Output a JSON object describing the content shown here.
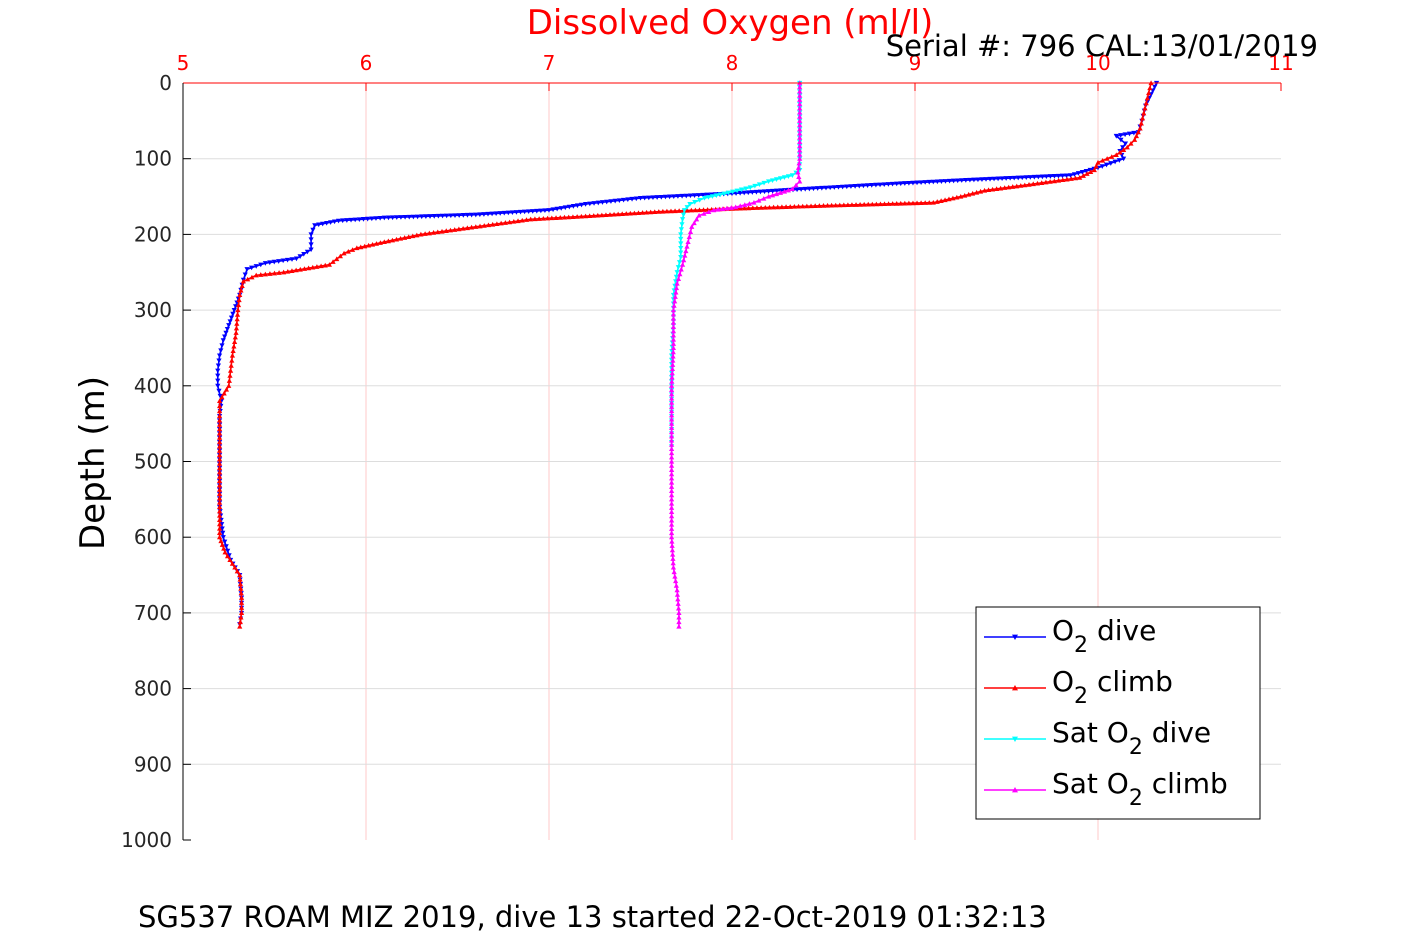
{
  "chart_data": {
    "type": "line",
    "title": "Dissolved Oxygen (ml/l)",
    "title_color": "#ff0000",
    "subtitle": "Serial #: 796  CAL:13/01/2019",
    "footer": "SG537 ROAM MIZ 2019, dive 13 started 22-Oct-2019 01:32:13",
    "ylabel": "Depth (m)",
    "xlim": [
      5,
      11
    ],
    "ylim": [
      0,
      1000
    ],
    "y_reversed": true,
    "x_axis_position": "top",
    "x_ticks": [
      "5",
      "6",
      "7",
      "8",
      "9",
      "10",
      "11"
    ],
    "y_ticks": [
      "0",
      "100",
      "200",
      "300",
      "400",
      "500",
      "600",
      "700",
      "800",
      "900",
      "1000"
    ],
    "x_tick_color": "#ff0000",
    "grid": true,
    "grid_x_color": "#ffc8c8",
    "grid_y_color": "#dddddd",
    "legend_position": "bottom-right",
    "series": [
      {
        "legend_main": "O",
        "legend_sub": "2",
        "legend_rest": " dive",
        "color": "#0000ff",
        "marker": "triangle-down",
        "points": [
          [
            10.32,
            0
          ],
          [
            10.3,
            10
          ],
          [
            10.26,
            30
          ],
          [
            10.24,
            50
          ],
          [
            10.22,
            65
          ],
          [
            10.1,
            70
          ],
          [
            10.15,
            80
          ],
          [
            10.12,
            90
          ],
          [
            10.14,
            100
          ],
          [
            10.0,
            112
          ],
          [
            9.85,
            122
          ],
          [
            9.3,
            128
          ],
          [
            8.9,
            133
          ],
          [
            8.4,
            140
          ],
          [
            8.0,
            146
          ],
          [
            7.5,
            152
          ],
          [
            7.2,
            160
          ],
          [
            7.0,
            168
          ],
          [
            6.6,
            174
          ],
          [
            6.1,
            178
          ],
          [
            5.85,
            182
          ],
          [
            5.72,
            188
          ],
          [
            5.7,
            200
          ],
          [
            5.7,
            220
          ],
          [
            5.62,
            232
          ],
          [
            5.45,
            238
          ],
          [
            5.35,
            246
          ],
          [
            5.33,
            260
          ],
          [
            5.31,
            280
          ],
          [
            5.28,
            300
          ],
          [
            5.25,
            320
          ],
          [
            5.22,
            340
          ],
          [
            5.2,
            360
          ],
          [
            5.19,
            380
          ],
          [
            5.19,
            400
          ],
          [
            5.21,
            420
          ],
          [
            5.2,
            440
          ],
          [
            5.2,
            480
          ],
          [
            5.2,
            520
          ],
          [
            5.2,
            560
          ],
          [
            5.22,
            600
          ],
          [
            5.26,
            630
          ],
          [
            5.31,
            650
          ],
          [
            5.32,
            680
          ],
          [
            5.32,
            700
          ],
          [
            5.31,
            715
          ]
        ]
      },
      {
        "legend_main": "O",
        "legend_sub": "2",
        "legend_rest": " climb",
        "color": "#ff0000",
        "marker": "triangle-up",
        "points": [
          [
            10.29,
            0
          ],
          [
            10.27,
            20
          ],
          [
            10.25,
            40
          ],
          [
            10.23,
            60
          ],
          [
            10.2,
            75
          ],
          [
            10.16,
            85
          ],
          [
            10.1,
            95
          ],
          [
            10.0,
            105
          ],
          [
            9.98,
            115
          ],
          [
            9.9,
            125
          ],
          [
            9.6,
            135
          ],
          [
            9.38,
            142
          ],
          [
            9.25,
            150
          ],
          [
            9.1,
            158
          ],
          [
            8.5,
            162
          ],
          [
            8.0,
            166
          ],
          [
            7.6,
            170
          ],
          [
            7.2,
            176
          ],
          [
            6.9,
            180
          ],
          [
            6.6,
            190
          ],
          [
            6.3,
            200
          ],
          [
            6.1,
            210
          ],
          [
            5.95,
            218
          ],
          [
            5.88,
            225
          ],
          [
            5.8,
            240
          ],
          [
            5.55,
            250
          ],
          [
            5.4,
            254
          ],
          [
            5.33,
            262
          ],
          [
            5.31,
            280
          ],
          [
            5.3,
            300
          ],
          [
            5.29,
            330
          ],
          [
            5.27,
            360
          ],
          [
            5.26,
            380
          ],
          [
            5.25,
            400
          ],
          [
            5.2,
            420
          ],
          [
            5.2,
            440
          ],
          [
            5.2,
            480
          ],
          [
            5.2,
            520
          ],
          [
            5.2,
            560
          ],
          [
            5.2,
            600
          ],
          [
            5.23,
            620
          ],
          [
            5.27,
            635
          ],
          [
            5.31,
            650
          ],
          [
            5.32,
            680
          ],
          [
            5.32,
            700
          ],
          [
            5.31,
            718
          ]
        ]
      },
      {
        "legend_main": "Sat O",
        "legend_sub": "2",
        "legend_rest": " dive",
        "color": "#00ffff",
        "marker": "triangle-down",
        "points": [
          [
            8.37,
            0
          ],
          [
            8.37,
            50
          ],
          [
            8.37,
            100
          ],
          [
            8.37,
            115
          ],
          [
            8.33,
            122
          ],
          [
            8.2,
            130
          ],
          [
            8.1,
            138
          ],
          [
            7.98,
            145
          ],
          [
            7.85,
            152
          ],
          [
            7.77,
            160
          ],
          [
            7.74,
            168
          ],
          [
            7.73,
            180
          ],
          [
            7.72,
            200
          ],
          [
            7.72,
            230
          ],
          [
            7.7,
            250
          ],
          [
            7.68,
            280
          ],
          [
            7.68,
            320
          ],
          [
            7.67,
            360
          ],
          [
            7.67,
            400
          ],
          [
            7.67,
            440
          ],
          [
            7.67,
            480
          ]
        ]
      },
      {
        "legend_main": "Sat O",
        "legend_sub": "2",
        "legend_rest": " climb",
        "color": "#ff00ff",
        "marker": "triangle-up",
        "points": [
          [
            8.37,
            0
          ],
          [
            8.37,
            50
          ],
          [
            8.37,
            100
          ],
          [
            8.36,
            118
          ],
          [
            8.37,
            130
          ],
          [
            8.33,
            140
          ],
          [
            8.2,
            150
          ],
          [
            8.12,
            158
          ],
          [
            8.02,
            164
          ],
          [
            7.9,
            168
          ],
          [
            7.82,
            175
          ],
          [
            7.78,
            190
          ],
          [
            7.76,
            210
          ],
          [
            7.73,
            240
          ],
          [
            7.7,
            265
          ],
          [
            7.68,
            300
          ],
          [
            7.68,
            350
          ],
          [
            7.67,
            400
          ],
          [
            7.67,
            450
          ],
          [
            7.67,
            500
          ],
          [
            7.67,
            550
          ],
          [
            7.67,
            600
          ],
          [
            7.68,
            640
          ],
          [
            7.7,
            670
          ],
          [
            7.71,
            700
          ],
          [
            7.71,
            718
          ]
        ]
      }
    ]
  }
}
